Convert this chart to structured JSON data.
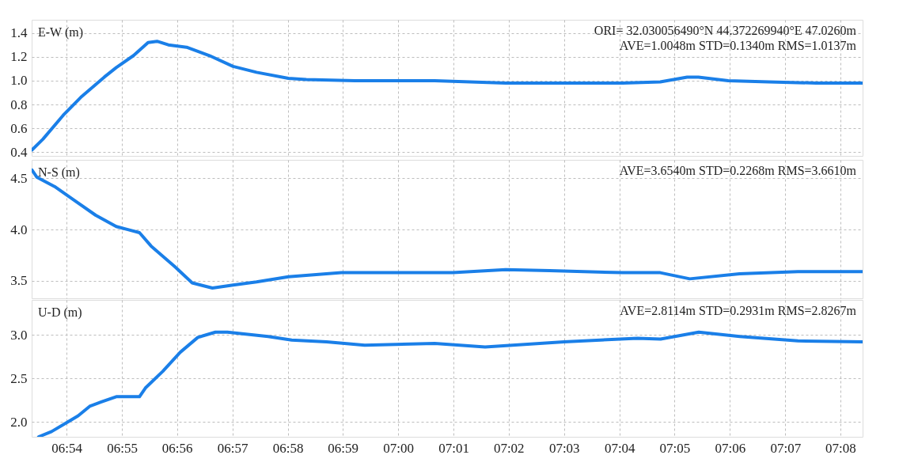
{
  "chart_data": [
    {
      "type": "line",
      "ylabel": "E-W (m)",
      "annotations": [
        "ORI= 32.030056490°N   44.372269940°E 47.0260m",
        "AVE=1.0048m STD=0.1340m RMS=1.0137m"
      ],
      "color": "#1a7fe8",
      "grid": true,
      "tick_labels": "y",
      "x": [
        6.8896,
        6.8929,
        6.899,
        6.9043,
        6.9114,
        6.915,
        6.9202,
        6.9246,
        6.9273,
        6.9307,
        6.9362,
        6.9431,
        6.9502,
        6.9573,
        6.9669,
        6.9723,
        6.9869,
        7.011,
        7.0324,
        7.0483,
        7.0676,
        7.079,
        7.0871,
        7.0905,
        7.0995,
        7.1117,
        7.126,
        7.14
      ],
      "values": [
        0.42,
        0.51,
        0.71,
        0.86,
        1.03,
        1.11,
        1.21,
        1.32,
        1.33,
        1.3,
        1.28,
        1.21,
        1.12,
        1.07,
        1.02,
        1.01,
        1.0,
        1.0,
        0.98,
        0.98,
        0.98,
        0.99,
        1.03,
        1.03,
        1.0,
        0.99,
        0.98,
        0.98
      ],
      "xlim": [
        6.8895,
        7.14
      ],
      "xticks": [
        {
          "value": 6.9,
          "label": null
        },
        {
          "value": 6.9167,
          "label": null
        },
        {
          "value": 6.9333,
          "label": null
        },
        {
          "value": 6.95,
          "label": null
        },
        {
          "value": 6.9667,
          "label": null
        },
        {
          "value": 6.9833,
          "label": null
        },
        {
          "value": 7.0,
          "label": null
        },
        {
          "value": 7.0167,
          "label": null
        },
        {
          "value": 7.0333,
          "label": null
        },
        {
          "value": 7.05,
          "label": null
        },
        {
          "value": 7.0667,
          "label": null
        },
        {
          "value": 7.0833,
          "label": null
        },
        {
          "value": 7.1,
          "label": null
        },
        {
          "value": 7.1167,
          "label": null
        },
        {
          "value": 7.1333,
          "label": null
        }
      ],
      "ylim": [
        0.37,
        1.51
      ],
      "yticks": [
        0.4,
        0.6,
        0.8,
        {
          "value": 1.0,
          "label": "1.0"
        },
        1.2,
        1.4
      ]
    },
    {
      "type": "line",
      "ylabel": "N-S (m)",
      "annotations": [
        "AVE=3.6540m STD=0.2268m RMS=3.6610m"
      ],
      "color": "#1a7fe8",
      "grid": true,
      "tick_labels": "y",
      "x": [
        6.8896,
        6.8911,
        6.8964,
        6.9026,
        6.9088,
        6.915,
        6.9185,
        6.922,
        6.9255,
        6.9326,
        6.9379,
        6.944,
        6.9502,
        6.9573,
        6.9669,
        6.9829,
        7.011,
        7.0165,
        7.0324,
        7.0456,
        7.0676,
        7.079,
        7.0879,
        7.1029,
        7.1205,
        7.14
      ],
      "values": [
        4.58,
        4.51,
        4.42,
        4.28,
        4.14,
        4.03,
        4.0,
        3.97,
        3.84,
        3.64,
        3.48,
        3.43,
        3.46,
        3.49,
        3.54,
        3.58,
        3.58,
        3.58,
        3.61,
        3.6,
        3.58,
        3.58,
        3.52,
        3.57,
        3.59,
        3.59
      ],
      "xlim": [
        6.8895,
        7.14
      ],
      "xticks": [
        {
          "value": 6.9,
          "label": null
        },
        {
          "value": 6.9167,
          "label": null
        },
        {
          "value": 6.9333,
          "label": null
        },
        {
          "value": 6.95,
          "label": null
        },
        {
          "value": 6.9667,
          "label": null
        },
        {
          "value": 6.9833,
          "label": null
        },
        {
          "value": 7.0,
          "label": null
        },
        {
          "value": 7.0167,
          "label": null
        },
        {
          "value": 7.0333,
          "label": null
        },
        {
          "value": 7.05,
          "label": null
        },
        {
          "value": 7.0667,
          "label": null
        },
        {
          "value": 7.0833,
          "label": null
        },
        {
          "value": 7.1,
          "label": null
        },
        {
          "value": 7.1167,
          "label": null
        },
        {
          "value": 7.1333,
          "label": null
        }
      ],
      "ylim": [
        3.33,
        4.68
      ],
      "yticks": [
        3.5,
        {
          "value": 4.0,
          "label": "4.0"
        },
        4.5
      ]
    },
    {
      "type": "line",
      "ylabel": "U-D (m)",
      "annotations": [
        "AVE=2.8114m STD=0.2931m RMS=2.8267m"
      ],
      "color": "#1a7fe8",
      "grid": true,
      "x": [
        6.8916,
        6.8955,
        6.9008,
        6.9035,
        6.907,
        6.9105,
        6.915,
        6.922,
        6.9238,
        6.929,
        6.9343,
        6.9396,
        6.9449,
        6.9485,
        6.9608,
        6.9679,
        6.9784,
        6.9899,
        7.011,
        7.0262,
        7.05,
        7.0721,
        7.0791,
        7.0906,
        7.103,
        7.1205,
        7.14
      ],
      "values": [
        1.83,
        1.89,
        2.01,
        2.07,
        2.18,
        2.23,
        2.29,
        2.29,
        2.39,
        2.58,
        2.8,
        2.97,
        3.03,
        3.03,
        2.98,
        2.94,
        2.92,
        2.88,
        2.9,
        2.86,
        2.92,
        2.96,
        2.95,
        3.03,
        2.98,
        2.93,
        2.92
      ],
      "xlim": [
        6.8895,
        7.14
      ],
      "xticks": [
        {
          "value": 6.9,
          "label": "06:54"
        },
        {
          "value": 6.9167,
          "label": "06:55"
        },
        {
          "value": 6.9333,
          "label": "06:56"
        },
        {
          "value": 6.95,
          "label": "06:57"
        },
        {
          "value": 6.9667,
          "label": "06:58"
        },
        {
          "value": 6.9833,
          "label": "06:59"
        },
        {
          "value": 7.0,
          "label": "07:00"
        },
        {
          "value": 7.0167,
          "label": "07:01"
        },
        {
          "value": 7.0333,
          "label": "07:02"
        },
        {
          "value": 7.05,
          "label": "07:03"
        },
        {
          "value": 7.0667,
          "label": "07:04"
        },
        {
          "value": 7.0833,
          "label": "07:05"
        },
        {
          "value": 7.1,
          "label": "07:06"
        },
        {
          "value": 7.1167,
          "label": "07:07"
        },
        {
          "value": 7.1333,
          "label": "07:08"
        }
      ],
      "ylim": [
        1.83,
        3.4
      ],
      "yticks": [
        {
          "value": 2.0,
          "label": "2.0"
        },
        2.5,
        {
          "value": 3.0,
          "label": "3.0"
        }
      ]
    }
  ]
}
